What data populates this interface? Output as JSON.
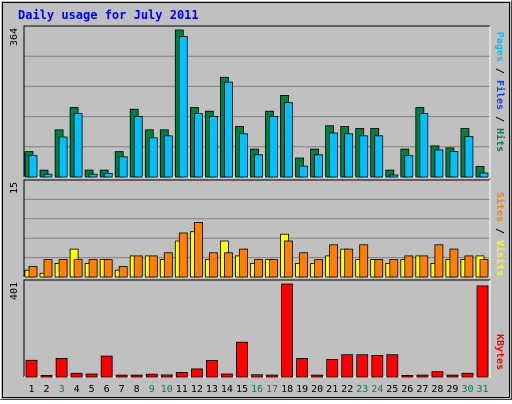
{
  "chart_data": {
    "type": "bar",
    "title": "Daily usage for July 2011",
    "categories": [
      "1",
      "2",
      "3",
      "4",
      "5",
      "6",
      "7",
      "8",
      "9",
      "10",
      "11",
      "12",
      "13",
      "14",
      "15",
      "16",
      "17",
      "18",
      "19",
      "20",
      "21",
      "22",
      "23",
      "24",
      "25",
      "26",
      "27",
      "28",
      "29",
      "30",
      "31"
    ],
    "weekend_days": [
      "3",
      "9",
      "10",
      "16",
      "17",
      "23",
      "24",
      "30",
      "31"
    ],
    "panels": [
      {
        "id": "hits-files",
        "ymax": 364,
        "ymax_label": "364",
        "grid": true,
        "series": [
          {
            "name": "Hits",
            "color": "#008040",
            "values": [
              63,
              17,
              117,
              172,
              17,
              17,
              63,
              168,
              117,
              117,
              364,
              172,
              163,
              247,
              125,
              69,
              163,
              202,
              47,
              69,
              127,
              125,
              120,
              120,
              17,
              69,
              172,
              77,
              72,
              120,
              26
            ]
          },
          {
            "name": "Files",
            "color": "#00c0ff",
            "values": [
              53,
              7,
              99,
              157,
              7,
              9,
              50,
              150,
              97,
              102,
              348,
              157,
              150,
              235,
              107,
              55,
              150,
              184,
              27,
              55,
              109,
              107,
              102,
              102,
              5,
              53,
              157,
              67,
              63,
              100,
              10
            ]
          }
        ]
      },
      {
        "id": "sites-visits",
        "ymax": 15,
        "ymax_label": "15",
        "grid": true,
        "series": [
          {
            "name": "Sites",
            "color": "#ffff00",
            "values": [
              1.1,
              0.6,
              2.2,
              4.5,
              2.2,
              2.8,
              1.1,
              3.4,
              3.4,
              2.8,
              5.8,
              7.3,
              2.8,
              5.8,
              3.4,
              2.2,
              2.8,
              6.9,
              2.2,
              2.2,
              3.4,
              4.5,
              2.8,
              2.8,
              2.2,
              2.8,
              3.4,
              2.2,
              2.8,
              2.8,
              3.4
            ]
          },
          {
            "name": "Visits",
            "color": "#ff8000",
            "values": [
              1.7,
              2.8,
              2.8,
              2.8,
              2.8,
              2.8,
              1.7,
              3.4,
              3.4,
              3.9,
              7.1,
              8.8,
              3.9,
              3.9,
              4.5,
              2.8,
              2.8,
              5.8,
              3.9,
              2.8,
              5.2,
              4.5,
              5.2,
              2.8,
              2.8,
              3.4,
              3.4,
              5.2,
              4.5,
              3.4,
              2.8
            ]
          }
        ]
      },
      {
        "id": "kbytes",
        "ymax": 401,
        "ymax_label": "401",
        "grid": false,
        "series": [
          {
            "name": "KBytes",
            "color": "#ff0000",
            "values": [
              72,
              7,
              80,
              16,
              13,
              90,
              8,
              8,
              12,
              9,
              20,
              35,
              71,
              13,
              150,
              10,
              8,
              401,
              80,
              8,
              76,
              96,
              96,
              93,
              96,
              7,
              8,
              23,
              8,
              16,
              393
            ]
          }
        ]
      }
    ],
    "legend": {
      "hits_label": "Hits",
      "files_label": "Files",
      "pages_label": "Pages",
      "sites_label": "Sites",
      "visits_label": "Visits",
      "kbytes_label": "KBytes",
      "separator": " / ",
      "hits_color": "#00805c",
      "files_color": "#0040ff",
      "pages_color": "#00c0ff",
      "sites_color": "#ff8000",
      "visits_color": "#ffff00",
      "kbytes_color": "#ff0000"
    },
    "colors": {
      "background": "#c0c0c0",
      "plot": "#c0c0c0",
      "grid": "#808080",
      "title": "#0000ff",
      "weekday_label": "#000000",
      "weekend_label": "#00805c"
    }
  }
}
